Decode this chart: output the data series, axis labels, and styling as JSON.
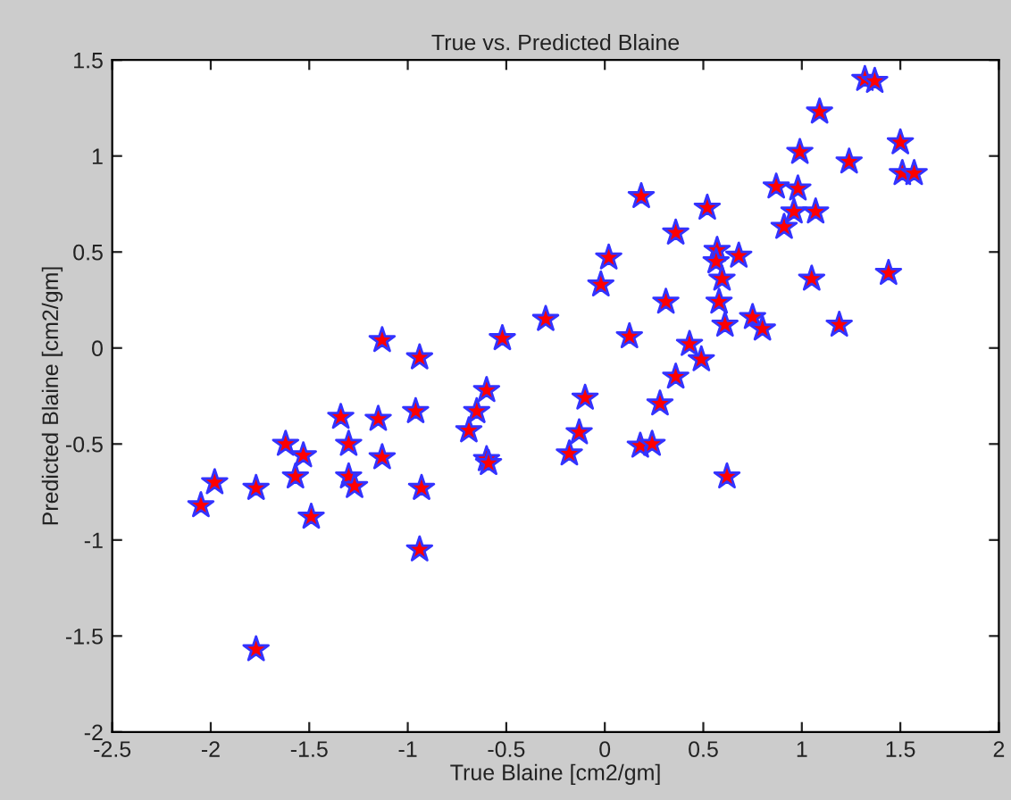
{
  "chart_data": {
    "type": "scatter",
    "title": "True vs. Predicted Blaine",
    "xlabel": "True Blaine [cm2/gm]",
    "ylabel": "Predicted Blaine [cm2/gm]",
    "x": [
      -2.05,
      -1.98,
      -1.77,
      -1.77,
      -1.62,
      -1.53,
      -1.57,
      -1.49,
      -1.34,
      -1.3,
      -1.3,
      -1.27,
      -1.15,
      -1.13,
      -1.13,
      -0.96,
      -0.94,
      -0.93,
      -0.94,
      -0.69,
      -0.65,
      -0.6,
      -0.6,
      -0.59,
      -0.52,
      -0.3,
      -0.18,
      -0.13,
      -0.1,
      0.18,
      0.24,
      0.28,
      0.62,
      0.185,
      0.02,
      -0.02,
      0.36,
      0.52,
      0.31,
      0.125,
      0.43,
      0.49,
      0.36,
      0.57,
      0.68,
      0.565,
      0.595,
      0.58,
      0.61,
      0.75,
      0.8,
      1.05,
      1.19,
      1.44,
      0.91,
      0.96,
      1.07,
      0.87,
      0.98,
      0.99,
      1.24,
      1.09,
      1.32,
      1.37,
      1.5,
      1.51,
      1.57
    ],
    "values": [
      -0.82,
      -0.7,
      -0.73,
      -1.57,
      -0.5,
      -0.56,
      -0.67,
      -0.88,
      -0.36,
      -0.5,
      -0.67,
      -0.72,
      -0.37,
      -0.57,
      0.04,
      -0.33,
      -0.05,
      -0.73,
      -1.05,
      -0.43,
      -0.33,
      -0.22,
      -0.58,
      -0.6,
      0.05,
      0.15,
      -0.55,
      -0.44,
      -0.26,
      -0.51,
      -0.5,
      -0.29,
      -0.67,
      0.79,
      0.47,
      0.33,
      0.6,
      0.73,
      0.24,
      0.06,
      0.02,
      -0.06,
      -0.15,
      0.51,
      0.48,
      0.45,
      0.36,
      0.24,
      0.12,
      0.16,
      0.1,
      0.36,
      0.12,
      0.39,
      0.63,
      0.71,
      0.71,
      0.84,
      0.83,
      1.02,
      0.97,
      1.23,
      1.4,
      1.39,
      1.07,
      0.91,
      0.91
    ],
    "color": "#ff0000",
    "marker": "star",
    "xlim": [
      -2.5,
      2
    ],
    "xticks": [
      -2.5,
      -2,
      -1.5,
      -1,
      -0.5,
      0,
      0.5,
      1,
      1.5,
      2
    ],
    "ylim": [
      -2,
      1.5
    ],
    "yticks": [
      -2,
      -1.5,
      -1,
      -0.5,
      0,
      0.5,
      1,
      1.5
    ]
  }
}
